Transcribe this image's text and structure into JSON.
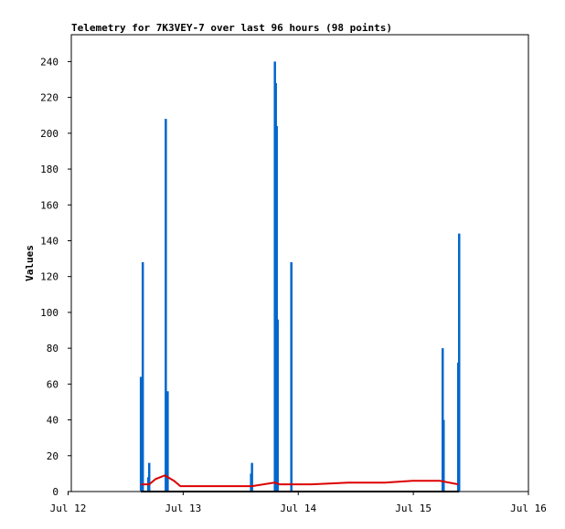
{
  "chart_data": {
    "type": "line",
    "title": "Telemetry for 7K3VEY-7 over last 96 hours (98 points)",
    "y_label": "Values",
    "xlim": [
      0.028,
      4
    ],
    "xticks": [
      {
        "value": 0,
        "label": "Jul 12"
      },
      {
        "value": 1,
        "label": "Jul 13"
      },
      {
        "value": 2,
        "label": "Jul 14"
      },
      {
        "value": 3,
        "label": "Jul 15"
      },
      {
        "value": 4,
        "label": "Jul 16"
      }
    ],
    "ylim": [
      0,
      255
    ],
    "yticks": [
      0,
      20,
      40,
      60,
      80,
      100,
      120,
      140,
      160,
      180,
      200,
      220,
      240
    ],
    "grid": false,
    "series": [
      {
        "color": "#0066cc",
        "style": "impulse",
        "x": [
          0.633,
          0.649,
          0.697,
          0.705,
          0.849,
          0.865,
          1.59,
          1.598,
          1.797,
          1.805,
          1.813,
          1.821,
          1.94,
          3.255,
          3.263,
          3.39,
          3.398
        ],
        "values": [
          64,
          128,
          8,
          16,
          208,
          56,
          10,
          16,
          240,
          228,
          204,
          96,
          128,
          80,
          40,
          72,
          144
        ]
      },
      {
        "color": "#dd0000",
        "style": "line",
        "x": [
          0.633,
          0.705,
          0.761,
          0.841,
          0.92,
          0.976,
          1.598,
          1.797,
          1.837,
          2.116,
          2.434,
          2.753,
          2.992,
          3.231,
          3.39
        ],
        "values": [
          4,
          4,
          7,
          9,
          6,
          3,
          3,
          5,
          4,
          4,
          5,
          5,
          6,
          6,
          4
        ]
      },
      {
        "color": "#000000",
        "style": "line",
        "x": [
          0.633,
          3.398
        ],
        "values": [
          0,
          0
        ]
      }
    ]
  }
}
